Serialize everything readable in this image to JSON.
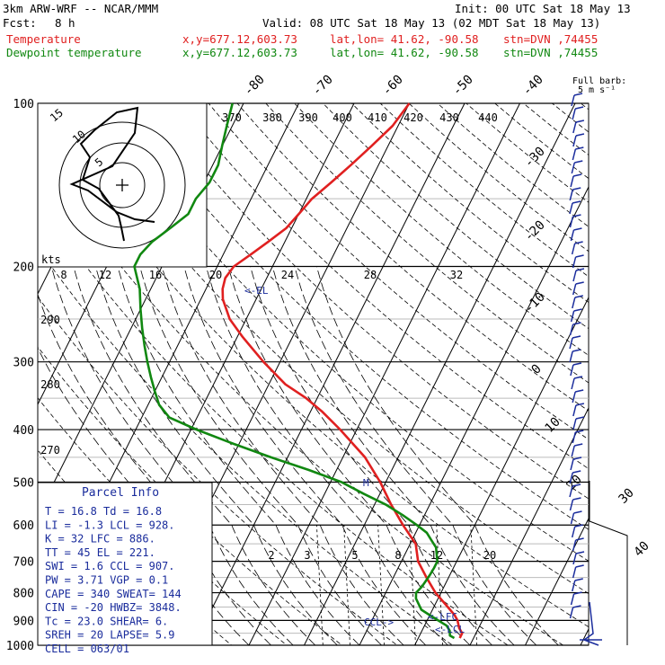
{
  "header": {
    "model": "3km ARW-WRF -- NCAR/MMM",
    "init": "Init: 00 UTC Sat 18 May 13",
    "fcst_label": "Fcst:",
    "fcst_value": "8 h",
    "valid": "Valid: 08 UTC Sat 18 May 13 (02 MDT Sat 18 May 13)",
    "temp_label": "Temperature",
    "dew_label": "Dewpoint temperature",
    "xy": "x,y=677.12,603.73",
    "latlon": "lat,lon= 41.62, -90.58",
    "stn": "stn=DVN ,74455",
    "full_barb_line1": "Full barb:",
    "full_barb_line2": "5 m s⁻¹"
  },
  "colors": {
    "temperature": "#e02020",
    "dewpoint": "#118811",
    "barbs": "#1a2c9c",
    "info": "#1a2c9c"
  },
  "parcel_info": {
    "title": "Parcel Info",
    "rows": [
      "T  =   16.8  Td =  16.8",
      "LI =   -1.3  LCL =  928.",
      "K  =     32  LFC =  886.",
      "TT =     45  EL  =  221.",
      "SWI =   1.6  CCL =  907.",
      "PW =   3.71  VGP =   0.1",
      "CAPE =  340  SWEAT=  144",
      "CIN =   -20  HWBZ= 3848.",
      "Tc =   23.0  SHEAR=    6.",
      "SREH =   20  LAPSE=   5.9",
      "CELL = 063/01"
    ]
  },
  "chart_data": {
    "type": "line",
    "title": "",
    "xlabel": "",
    "ylabel": "",
    "pressure_ticks": [
      "100",
      "200",
      "300",
      "400",
      "500",
      "600",
      "700",
      "800",
      "900",
      "1000"
    ],
    "temperature_ticks": [
      "-80",
      "-70",
      "-60",
      "-50",
      "-40",
      "-30",
      "-20",
      "-10",
      "0",
      "10",
      "20",
      "30",
      "40"
    ],
    "theta_labels": [
      "370",
      "380",
      "390",
      "400",
      "410",
      "420",
      "430",
      "440",
      "290",
      "280",
      "270"
    ],
    "mixing_ratio_labels": [
      "2",
      "3",
      "5",
      "8",
      "12",
      "20"
    ],
    "hodograph": {
      "speed_unit": "kts",
      "axis_labels": [
        "8",
        "12",
        "16",
        "20",
        "24",
        "28",
        "32"
      ],
      "ring_labels": [
        "5",
        "10",
        "15"
      ]
    },
    "annotations": [
      "<-EL",
      "CCL->",
      "<-LFC",
      "<-LCL"
    ],
    "series": [
      {
        "name": "Temperature",
        "pressure": [
          970,
          950,
          930,
          900,
          880,
          850,
          800,
          750,
          700,
          650,
          600,
          550,
          500,
          450,
          400,
          370,
          350,
          330,
          300,
          270,
          250,
          230,
          220,
          210,
          200,
          190,
          180,
          170,
          160,
          150,
          140,
          130,
          120,
          110,
          100
        ],
        "values": [
          17.5,
          17.5,
          16.5,
          15.5,
          14.5,
          12.5,
          9,
          6,
          3,
          1,
          -3,
          -7,
          -11,
          -16,
          -23,
          -28,
          -32,
          -37,
          -43,
          -49,
          -53,
          -56,
          -57,
          -57.5,
          -57,
          -55,
          -53,
          -51,
          -50,
          -49,
          -47,
          -45,
          -43,
          -41,
          -40
        ]
      },
      {
        "name": "Dewpoint temperature",
        "pressure": [
          970,
          960,
          940,
          920,
          900,
          880,
          860,
          840,
          820,
          800,
          780,
          760,
          740,
          720,
          700,
          660,
          640,
          620,
          600,
          575,
          550,
          525,
          500,
          475,
          450,
          425,
          400,
          380,
          360,
          340,
          320,
          300,
          280,
          260,
          240,
          220,
          200,
          190,
          180,
          170,
          160,
          150,
          140,
          130,
          120,
          110,
          100
        ],
        "values": [
          16.5,
          15.5,
          15,
          14,
          12,
          10,
          8,
          7,
          6,
          5.5,
          6,
          6.2,
          6.4,
          6.5,
          6.5,
          5,
          3.5,
          2,
          -0.5,
          -4,
          -8,
          -13,
          -18,
          -25,
          -33,
          -41,
          -49,
          -55,
          -58,
          -60,
          -62,
          -64,
          -66,
          -68,
          -70,
          -72,
          -75,
          -75,
          -74,
          -72,
          -70,
          -70,
          -69,
          -69,
          -70,
          -71,
          -72
        ]
      }
    ]
  }
}
